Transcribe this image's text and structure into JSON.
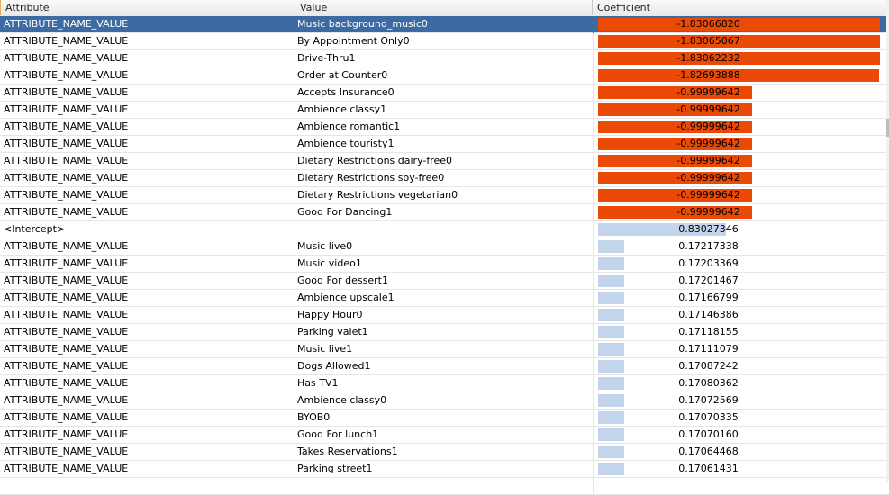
{
  "table": {
    "columns": [
      "Attribute",
      "Value",
      "Coefficient"
    ],
    "selected_row": 0,
    "colors": {
      "negative_bar": "#ea4a06",
      "positive_bar": "#c3d5ea",
      "selection": "#3b6ba2"
    },
    "rows": [
      {
        "attribute": "ATTRIBUTE_NAME_VALUE",
        "value": "Music background_music0",
        "coefficient": "-1.83066820"
      },
      {
        "attribute": "ATTRIBUTE_NAME_VALUE",
        "value": "By Appointment Only0",
        "coefficient": "-1.83065067"
      },
      {
        "attribute": "ATTRIBUTE_NAME_VALUE",
        "value": "Drive-Thru1",
        "coefficient": "-1.83062232"
      },
      {
        "attribute": "ATTRIBUTE_NAME_VALUE",
        "value": "Order at Counter0",
        "coefficient": "-1.82693888"
      },
      {
        "attribute": "ATTRIBUTE_NAME_VALUE",
        "value": "Accepts Insurance0",
        "coefficient": "-0.99999642"
      },
      {
        "attribute": "ATTRIBUTE_NAME_VALUE",
        "value": "Ambience classy1",
        "coefficient": "-0.99999642"
      },
      {
        "attribute": "ATTRIBUTE_NAME_VALUE",
        "value": "Ambience romantic1",
        "coefficient": "-0.99999642"
      },
      {
        "attribute": "ATTRIBUTE_NAME_VALUE",
        "value": "Ambience touristy1",
        "coefficient": "-0.99999642"
      },
      {
        "attribute": "ATTRIBUTE_NAME_VALUE",
        "value": "Dietary Restrictions dairy-free0",
        "coefficient": "-0.99999642"
      },
      {
        "attribute": "ATTRIBUTE_NAME_VALUE",
        "value": "Dietary Restrictions soy-free0",
        "coefficient": "-0.99999642"
      },
      {
        "attribute": "ATTRIBUTE_NAME_VALUE",
        "value": "Dietary Restrictions vegetarian0",
        "coefficient": "-0.99999642"
      },
      {
        "attribute": "ATTRIBUTE_NAME_VALUE",
        "value": "Good For Dancing1",
        "coefficient": "-0.99999642"
      },
      {
        "attribute": "<Intercept>",
        "value": "",
        "coefficient": "0.83027346"
      },
      {
        "attribute": "ATTRIBUTE_NAME_VALUE",
        "value": "Music live0",
        "coefficient": "0.17217338"
      },
      {
        "attribute": "ATTRIBUTE_NAME_VALUE",
        "value": "Music video1",
        "coefficient": "0.17203369"
      },
      {
        "attribute": "ATTRIBUTE_NAME_VALUE",
        "value": "Good For dessert1",
        "coefficient": "0.17201467"
      },
      {
        "attribute": "ATTRIBUTE_NAME_VALUE",
        "value": "Ambience upscale1",
        "coefficient": "0.17166799"
      },
      {
        "attribute": "ATTRIBUTE_NAME_VALUE",
        "value": "Happy Hour0",
        "coefficient": "0.17146386"
      },
      {
        "attribute": "ATTRIBUTE_NAME_VALUE",
        "value": "Parking valet1",
        "coefficient": "0.17118155"
      },
      {
        "attribute": "ATTRIBUTE_NAME_VALUE",
        "value": "Music live1",
        "coefficient": "0.17111079"
      },
      {
        "attribute": "ATTRIBUTE_NAME_VALUE",
        "value": "Dogs Allowed1",
        "coefficient": "0.17087242"
      },
      {
        "attribute": "ATTRIBUTE_NAME_VALUE",
        "value": "Has TV1",
        "coefficient": "0.17080362"
      },
      {
        "attribute": "ATTRIBUTE_NAME_VALUE",
        "value": "Ambience classy0",
        "coefficient": "0.17072569"
      },
      {
        "attribute": "ATTRIBUTE_NAME_VALUE",
        "value": "BYOB0",
        "coefficient": "0.17070335"
      },
      {
        "attribute": "ATTRIBUTE_NAME_VALUE",
        "value": "Good For lunch1",
        "coefficient": "0.17070160"
      },
      {
        "attribute": "ATTRIBUTE_NAME_VALUE",
        "value": "Takes Reservations1",
        "coefficient": "0.17064468"
      },
      {
        "attribute": "ATTRIBUTE_NAME_VALUE",
        "value": "Parking street1",
        "coefficient": "0.17061431"
      },
      {
        "attribute": "",
        "value": "",
        "coefficient": ""
      }
    ]
  }
}
